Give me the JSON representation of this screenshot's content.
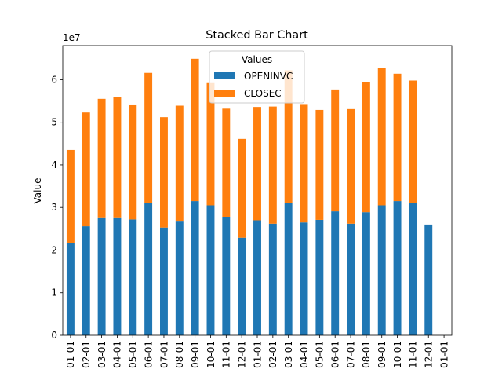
{
  "chart_data": {
    "type": "bar",
    "stacked": true,
    "title": "Stacked Bar Chart",
    "xlabel": "",
    "ylabel": "Value",
    "y_scale_label": "1e7",
    "ylim": [
      0,
      6.8
    ],
    "y_ticks": [
      0,
      1,
      2,
      3,
      4,
      5,
      6
    ],
    "y_tick_labels": [
      "0",
      "1",
      "2",
      "3",
      "4",
      "5",
      "6"
    ],
    "categories": [
      "01-01",
      "02-01",
      "03-01",
      "04-01",
      "05-01",
      "06-01",
      "07-01",
      "08-01",
      "09-01",
      "10-01",
      "11-01",
      "12-01",
      "01-01",
      "02-01",
      "03-01",
      "04-01",
      "05-01",
      "06-01",
      "07-01",
      "08-01",
      "09-01",
      "10-01",
      "11-01",
      "12-01",
      "01-01"
    ],
    "series": [
      {
        "name": "OPENINVC",
        "color": "#1f77b4",
        "values": [
          2.17,
          2.56,
          2.75,
          2.75,
          2.72,
          3.11,
          2.53,
          2.67,
          3.15,
          3.05,
          2.77,
          2.29,
          2.7,
          2.62,
          3.1,
          2.65,
          2.71,
          2.91,
          2.62,
          2.89,
          3.05,
          3.15,
          3.1,
          2.6,
          0
        ]
      },
      {
        "name": "CLOSEC",
        "color": "#ff7f0e",
        "values": [
          2.18,
          2.67,
          2.8,
          2.85,
          2.68,
          3.05,
          2.59,
          2.72,
          3.34,
          2.87,
          2.55,
          2.32,
          2.66,
          2.75,
          3.12,
          2.76,
          2.58,
          2.86,
          2.69,
          3.05,
          3.23,
          2.99,
          2.88,
          0,
          0
        ]
      }
    ],
    "legend": {
      "title": "Values",
      "position": "top-center"
    },
    "grid": false
  }
}
